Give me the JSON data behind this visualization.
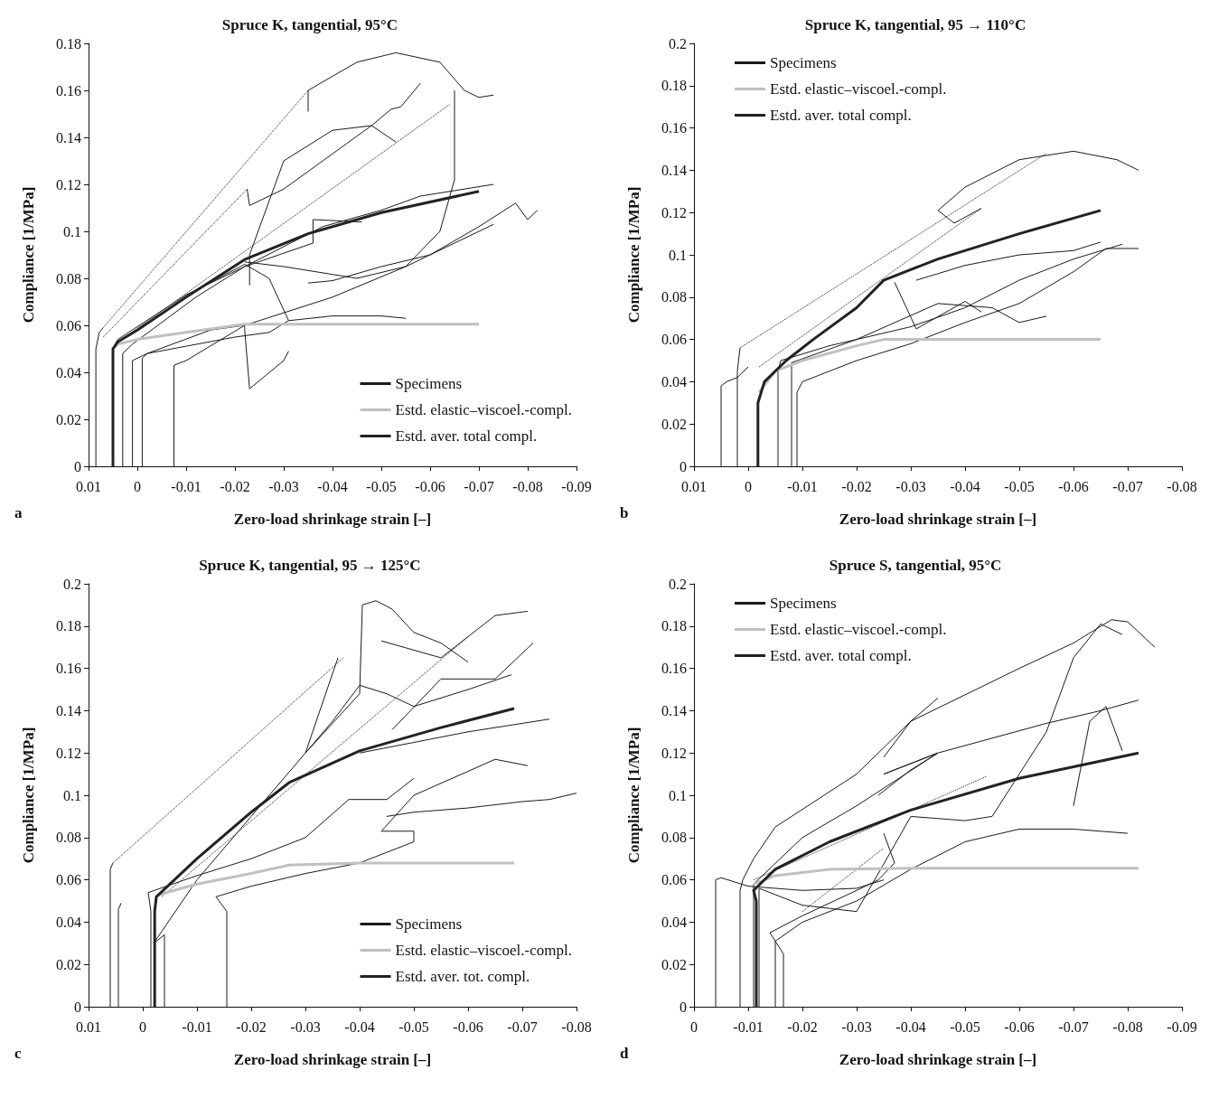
{
  "chart_data": [
    {
      "type": "line",
      "title": "Spruce K, tangential, 95°C",
      "xlabel": "Zero-load shrinkage strain [–]",
      "ylabel": "Compliance [1/MPa]",
      "annotations": [
        "a"
      ],
      "xlim": [
        0.01,
        -0.09
      ],
      "xticks": [
        0.01,
        0,
        -0.01,
        -0.02,
        -0.03,
        -0.04,
        -0.05,
        -0.06,
        -0.07,
        -0.08,
        -0.09
      ],
      "ylim": [
        0,
        0.18
      ],
      "yticks": [
        0,
        0.02,
        0.04,
        0.06,
        0.08,
        0.1,
        0.12,
        0.14,
        0.16,
        0.18
      ],
      "legend": "bottom right",
      "grid": false,
      "line_style": "solid",
      "series": [
        {
          "name": "Specimens",
          "color": "#1a1a1a",
          "x": [
            0.0085,
            0.0085,
            0.0078,
            0.007
          ],
          "values": [
            0,
            0.05,
            0.057,
            0.059
          ]
        },
        {
          "color": "#1a1a1a",
          "x": [
            0.005,
            0.005,
            0.004,
            -0.01,
            -0.022,
            -0.036,
            -0.036,
            -0.046
          ],
          "values": [
            0,
            0.05,
            0.054,
            0.073,
            0.085,
            0.095,
            0.105,
            0.104
          ]
        },
        {
          "color": "#1a1a1a",
          "x": [
            0.003,
            0.003,
            0.001,
            -0.012,
            -0.022,
            -0.038,
            -0.05,
            -0.058,
            -0.073
          ],
          "values": [
            0,
            0.048,
            0.052,
            0.072,
            0.085,
            0.102,
            0.109,
            0.115,
            0.12
          ]
        },
        {
          "color": "#1a1a1a",
          "x": [
            0.001,
            0.001,
            -0.002,
            -0.015,
            -0.022,
            -0.022,
            -0.023,
            -0.03,
            -0.031
          ],
          "values": [
            0,
            0.045,
            0.048,
            0.058,
            0.06,
            0.058,
            0.033,
            0.045,
            0.049
          ]
        },
        {
          "color": "#1a1a1a",
          "x": [
            -0.001,
            -0.001,
            -0.002,
            -0.02,
            -0.027,
            -0.031,
            -0.04,
            -0.05,
            -0.055
          ],
          "values": [
            0,
            0.046,
            0.048,
            0.055,
            0.057,
            0.062,
            0.064,
            0.064,
            0.063
          ]
        },
        {
          "color": "#1a1a1a",
          "x": [
            -0.0075,
            -0.0075,
            -0.01,
            -0.022,
            -0.04,
            -0.055,
            -0.07,
            -0.073
          ],
          "values": [
            0,
            0.043,
            0.045,
            0.06,
            0.072,
            0.085,
            0.1,
            0.103
          ]
        },
        {
          "color": "#1a1a1a",
          "x": [
            -0.035,
            -0.035,
            -0.045,
            -0.053,
            -0.062,
            -0.067,
            -0.07,
            -0.073
          ],
          "values": [
            0.151,
            0.16,
            0.172,
            0.176,
            0.172,
            0.16,
            0.157,
            0.158
          ]
        },
        {
          "color": "#1a1a1a",
          "x": [
            -0.0225,
            -0.023,
            -0.03,
            -0.04,
            -0.048,
            -0.052,
            -0.054,
            -0.058
          ],
          "values": [
            0.118,
            0.111,
            0.118,
            0.133,
            0.145,
            0.152,
            0.153,
            0.163
          ]
        },
        {
          "color": "#1a1a1a",
          "x": [
            -0.023,
            -0.023,
            -0.03,
            -0.04,
            -0.048,
            -0.053
          ],
          "values": [
            0.077,
            0.09,
            0.13,
            0.143,
            0.145,
            0.138
          ]
        },
        {
          "color": "#1a1a1a",
          "x": [
            -0.022,
            -0.03,
            -0.045,
            -0.055,
            -0.062,
            -0.065,
            -0.065
          ],
          "values": [
            0.087,
            0.085,
            0.08,
            0.085,
            0.1,
            0.122,
            0.16
          ]
        },
        {
          "color": "#1a1a1a",
          "x": [
            -0.035,
            -0.04,
            -0.05,
            -0.06,
            -0.07,
            -0.0775,
            -0.08,
            -0.082
          ],
          "values": [
            0.078,
            0.079,
            0.085,
            0.09,
            0.102,
            0.112,
            0.105,
            0.109
          ]
        },
        {
          "color": "#1a1a1a",
          "x": [
            -0.012,
            -0.022,
            -0.027,
            -0.031
          ],
          "values": [
            0.075,
            0.086,
            0.08,
            0.062
          ]
        },
        {
          "color": "#1a1a1a",
          "line_style": "dotted",
          "x": [
            0.007,
            -0.035
          ],
          "values": [
            0.059,
            0.16
          ]
        },
        {
          "color": "#1a1a1a",
          "line_style": "dotted",
          "x": [
            0.007,
            -0.0225
          ],
          "values": [
            0.055,
            0.118
          ]
        },
        {
          "color": "#1a1a1a",
          "line_style": "dotted",
          "x": [
            0.0045,
            -0.064
          ],
          "values": [
            0.052,
            0.154
          ]
        },
        {
          "name": "Estd. elastic–viscoel.-compl.",
          "color": "#c0c0c0",
          "x": [
            0.005,
            0.004,
            0,
            -0.01,
            -0.022,
            -0.07
          ],
          "values": [
            0.05,
            0.052,
            0.054,
            0.057,
            0.0605,
            0.0605
          ]
        },
        {
          "name": "Estd. aver. total compl.",
          "color": "#222222",
          "x": [
            0.005,
            0.005,
            0.004,
            0,
            -0.01,
            -0.022,
            -0.035,
            -0.05,
            -0.07
          ],
          "values": [
            0,
            0.05,
            0.053,
            0.058,
            0.072,
            0.088,
            0.099,
            0.108,
            0.117
          ]
        }
      ]
    },
    {
      "type": "line",
      "title": "Spruce K, tangential, 95 → 110°C",
      "xlabel": "Zero-load shrinkage strain [–]",
      "ylabel": "Compliance [1/MPa]",
      "annotations": [
        "b"
      ],
      "xlim": [
        0.01,
        -0.08
      ],
      "xticks": [
        0.01,
        0,
        -0.01,
        -0.02,
        -0.03,
        -0.04,
        -0.05,
        -0.06,
        -0.07,
        -0.08
      ],
      "ylim": [
        0,
        0.2
      ],
      "yticks": [
        0,
        0.02,
        0.04,
        0.06,
        0.08,
        0.1,
        0.12,
        0.14,
        0.16,
        0.18,
        0.2
      ],
      "legend": "top left",
      "grid": false,
      "line_style": "solid",
      "series": [
        {
          "name": "Specimens",
          "color": "#1a1a1a",
          "x": [
            0.005,
            0.005,
            0.004,
            0.002,
            0
          ],
          "values": [
            0,
            0.038,
            0.04,
            0.042,
            0.047
          ]
        },
        {
          "color": "#1a1a1a",
          "x": [
            0.002,
            0.002,
            0.0015
          ],
          "values": [
            0,
            0.045,
            0.056
          ]
        },
        {
          "color": "#1a1a1a",
          "x": [
            -0.0055,
            -0.0055,
            -0.006,
            -0.015,
            -0.03,
            -0.04,
            -0.05,
            -0.06,
            -0.069
          ],
          "values": [
            0,
            0.045,
            0.05,
            0.057,
            0.066,
            0.075,
            0.088,
            0.098,
            0.105
          ]
        },
        {
          "color": "#1a1a1a",
          "x": [
            -0.009,
            -0.009,
            -0.01,
            -0.02,
            -0.03,
            -0.04,
            -0.05,
            -0.06,
            -0.066,
            -0.072
          ],
          "values": [
            0,
            0.035,
            0.04,
            0.05,
            0.058,
            0.068,
            0.077,
            0.092,
            0.103,
            0.103
          ]
        },
        {
          "color": "#1a1a1a",
          "x": [
            -0.008,
            -0.008,
            -0.008,
            -0.02,
            -0.035,
            -0.045,
            -0.05,
            -0.055
          ],
          "values": [
            0,
            0.045,
            0.049,
            0.06,
            0.077,
            0.075,
            0.068,
            0.071
          ]
        },
        {
          "color": "#1a1a1a",
          "x": [
            -0.043,
            -0.038,
            -0.035,
            -0.04,
            -0.05,
            -0.06,
            -0.068,
            -0.072
          ],
          "values": [
            0.122,
            0.115,
            0.121,
            0.132,
            0.145,
            0.149,
            0.145,
            0.14
          ]
        },
        {
          "color": "#1a1a1a",
          "x": [
            -0.031,
            -0.04,
            -0.05,
            -0.06,
            -0.065
          ],
          "values": [
            0.088,
            0.095,
            0.1,
            0.102,
            0.106
          ]
        },
        {
          "color": "#1a1a1a",
          "x": [
            -0.027,
            -0.031,
            -0.04,
            -0.043
          ],
          "values": [
            0.087,
            0.065,
            0.078,
            0.073
          ]
        },
        {
          "color": "#1a1a1a",
          "line_style": "dotted",
          "x": [
            0.0015,
            -0.055
          ],
          "values": [
            0.056,
            0.148
          ]
        },
        {
          "color": "#1a1a1a",
          "line_style": "dotted",
          "x": [
            -0.002,
            -0.043
          ],
          "values": [
            0.047,
            0.122
          ]
        },
        {
          "name": "Estd. elastic–viscoel.-compl.",
          "color": "#c0c0c0",
          "x": [
            -0.002,
            -0.005,
            -0.01,
            -0.02,
            -0.025,
            -0.065
          ],
          "values": [
            0.035,
            0.045,
            0.05,
            0.057,
            0.06,
            0.06
          ]
        },
        {
          "name": "Estd. aver. total compl.",
          "color": "#222222",
          "x": [
            -0.0018,
            -0.0018,
            -0.003,
            -0.007,
            -0.012,
            -0.02,
            -0.025,
            -0.035,
            -0.05,
            -0.065
          ],
          "values": [
            0,
            0.03,
            0.04,
            0.05,
            0.06,
            0.075,
            0.088,
            0.098,
            0.11,
            0.121
          ]
        }
      ]
    },
    {
      "type": "line",
      "title": "Spruce K, tangential, 95 → 125°C",
      "xlabel": "Zero-load shrinkage strain [–]",
      "ylabel": "Compliance [1/MPa]",
      "annotations": [
        "c"
      ],
      "xlim": [
        0.01,
        -0.08
      ],
      "xticks": [
        0.01,
        0,
        -0.01,
        -0.02,
        -0.03,
        -0.04,
        -0.05,
        -0.06,
        -0.07,
        -0.08
      ],
      "ylim": [
        0,
        0.2
      ],
      "yticks": [
        0,
        0.02,
        0.04,
        0.06,
        0.08,
        0.1,
        0.12,
        0.14,
        0.16,
        0.18,
        0.2
      ],
      "legend": "bottom right",
      "grid": false,
      "line_style": "solid",
      "series": [
        {
          "name": "Specimens",
          "color": "#1a1a1a",
          "x": [
            0.006,
            0.006,
            0.0055
          ],
          "values": [
            0,
            0.065,
            0.068
          ]
        },
        {
          "color": "#1a1a1a",
          "x": [
            0.0045,
            0.0045,
            0.004
          ],
          "values": [
            0,
            0.046,
            0.049
          ]
        },
        {
          "color": "#1a1a1a",
          "x": [
            -0.0015,
            -0.0015,
            -0.001,
            -0.01,
            -0.02,
            -0.03,
            -0.038,
            -0.045,
            -0.05
          ],
          "values": [
            0,
            0.045,
            0.054,
            0.062,
            0.07,
            0.08,
            0.098,
            0.098,
            0.108
          ]
        },
        {
          "color": "#1a1a1a",
          "x": [
            -0.004,
            -0.004,
            -0.002,
            -0.01,
            -0.02,
            -0.03,
            -0.04,
            -0.0405,
            -0.043,
            -0.046,
            -0.05,
            -0.055,
            -0.06
          ],
          "values": [
            0,
            0.034,
            0.03,
            0.06,
            0.09,
            0.12,
            0.148,
            0.19,
            0.192,
            0.188,
            0.177,
            0.172,
            0.163
          ]
        },
        {
          "color": "#1a1a1a",
          "x": [
            -0.0155,
            -0.0155,
            -0.0135,
            -0.02,
            -0.03,
            -0.04,
            -0.05,
            -0.05,
            -0.044,
            -0.05,
            -0.065,
            -0.071
          ],
          "values": [
            0,
            0.045,
            0.052,
            0.057,
            0.063,
            0.068,
            0.078,
            0.083,
            0.083,
            0.1,
            0.117,
            0.114
          ]
        },
        {
          "color": "#1a1a1a",
          "x": [
            -0.045,
            -0.05,
            -0.06,
            -0.07,
            -0.075,
            -0.08
          ],
          "values": [
            0.09,
            0.092,
            0.094,
            0.097,
            0.098,
            0.101
          ]
        },
        {
          "color": "#1a1a1a",
          "x": [
            -0.036,
            -0.03,
            -0.035,
            -0.04,
            -0.045,
            -0.05,
            -0.06,
            -0.068
          ],
          "values": [
            0.165,
            0.12,
            0.135,
            0.152,
            0.148,
            0.142,
            0.15,
            0.157
          ]
        },
        {
          "color": "#1a1a1a",
          "x": [
            -0.044,
            -0.055,
            -0.065,
            -0.071
          ],
          "values": [
            0.173,
            0.165,
            0.185,
            0.187
          ]
        },
        {
          "color": "#1a1a1a",
          "x": [
            -0.046,
            -0.055,
            -0.065,
            -0.072
          ],
          "values": [
            0.131,
            0.155,
            0.155,
            0.172
          ]
        },
        {
          "color": "#1a1a1a",
          "x": [
            -0.04,
            -0.05,
            -0.06,
            -0.075
          ],
          "values": [
            0.12,
            0.125,
            0.13,
            0.136
          ]
        },
        {
          "color": "#1a1a1a",
          "line_style": "dotted",
          "x": [
            0.0055,
            -0.037
          ],
          "values": [
            0.068,
            0.165
          ]
        },
        {
          "color": "#1a1a1a",
          "line_style": "dotted",
          "x": [
            -0.0035,
            -0.06
          ],
          "values": [
            0.052,
            0.175
          ]
        },
        {
          "name": "Estd. elastic–viscoel.-compl.",
          "color": "#c0c0c0",
          "x": [
            -0.003,
            -0.01,
            -0.02,
            -0.027,
            -0.04,
            -0.0685
          ],
          "values": [
            0.053,
            0.058,
            0.063,
            0.067,
            0.068,
            0.068
          ]
        },
        {
          "name": "Estd. aver. tot. compl.",
          "color": "#222222",
          "x": [
            -0.0022,
            -0.0022,
            -0.0025,
            -0.01,
            -0.02,
            -0.027,
            -0.04,
            -0.055,
            -0.0685
          ],
          "values": [
            0,
            0.045,
            0.052,
            0.07,
            0.092,
            0.106,
            0.121,
            0.132,
            0.141
          ]
        }
      ]
    },
    {
      "type": "line",
      "title": "Spruce S, tangential, 95°C",
      "xlabel": "Zero-load shrinkage strain [–]",
      "ylabel": "Compliance [1/MPa]",
      "annotations": [
        "d"
      ],
      "xlim": [
        0,
        -0.09
      ],
      "xticks": [
        0,
        -0.01,
        -0.02,
        -0.03,
        -0.04,
        -0.05,
        -0.06,
        -0.07,
        -0.08,
        -0.09
      ],
      "ylim": [
        0,
        0.2
      ],
      "yticks": [
        0,
        0.02,
        0.04,
        0.06,
        0.08,
        0.1,
        0.12,
        0.14,
        0.16,
        0.18,
        0.2
      ],
      "legend": "top left",
      "grid": false,
      "line_style": "solid",
      "series": [
        {
          "name": "Specimens",
          "color": "#1a1a1a",
          "x": [
            -0.004,
            -0.004,
            -0.005,
            -0.01,
            -0.02,
            -0.03,
            -0.035
          ],
          "values": [
            0,
            0.06,
            0.061,
            0.057,
            0.055,
            0.056,
            0.06
          ]
        },
        {
          "color": "#1a1a1a",
          "x": [
            -0.0085,
            -0.0085,
            -0.009,
            -0.011,
            -0.015,
            -0.03,
            -0.04,
            -0.052,
            -0.06,
            -0.07,
            -0.077,
            -0.08,
            -0.085
          ],
          "values": [
            0,
            0.055,
            0.06,
            0.07,
            0.085,
            0.11,
            0.135,
            0.15,
            0.16,
            0.172,
            0.183,
            0.182,
            0.17
          ]
        },
        {
          "color": "#1a1a1a",
          "x": [
            -0.011,
            -0.011,
            -0.02,
            -0.03,
            -0.045,
            -0.055,
            -0.065,
            -0.075,
            -0.082
          ],
          "values": [
            0,
            0.058,
            0.08,
            0.095,
            0.12,
            0.127,
            0.134,
            0.14,
            0.145
          ]
        },
        {
          "color": "#1a1a1a",
          "x": [
            -0.012,
            -0.012,
            -0.02,
            -0.03,
            -0.04,
            -0.05,
            -0.055,
            -0.06,
            -0.065,
            -0.07,
            -0.075,
            -0.079
          ],
          "values": [
            0,
            0.056,
            0.048,
            0.045,
            0.09,
            0.088,
            0.09,
            0.11,
            0.13,
            0.165,
            0.181,
            0.176
          ]
        },
        {
          "color": "#1a1a1a",
          "x": [
            -0.015,
            -0.015,
            -0.02,
            -0.03,
            -0.04,
            -0.05,
            -0.06,
            -0.07,
            -0.08
          ],
          "values": [
            0,
            0.031,
            0.04,
            0.05,
            0.065,
            0.078,
            0.084,
            0.084,
            0.082
          ]
        },
        {
          "color": "#1a1a1a",
          "x": [
            -0.0165,
            -0.0165,
            -0.014,
            -0.02,
            -0.03,
            -0.034,
            -0.037,
            -0.035
          ],
          "values": [
            0,
            0.025,
            0.035,
            0.043,
            0.055,
            0.06,
            0.068,
            0.082
          ]
        },
        {
          "color": "#1a1a1a",
          "x": [
            -0.035,
            -0.04,
            -0.045
          ],
          "values": [
            0.118,
            0.135,
            0.146
          ]
        },
        {
          "color": "#1a1a1a",
          "x": [
            -0.034,
            -0.04,
            -0.045,
            -0.035,
            -0.045
          ],
          "values": [
            0.1,
            0.112,
            0.12,
            0.11,
            0.12
          ]
        },
        {
          "color": "#1a1a1a",
          "x": [
            -0.07,
            -0.073,
            -0.076,
            -0.079
          ],
          "values": [
            0.095,
            0.135,
            0.142,
            0.121
          ]
        },
        {
          "color": "#1a1a1a",
          "line_style": "dotted",
          "x": [
            -0.011,
            -0.054
          ],
          "values": [
            0.06,
            0.109
          ]
        },
        {
          "color": "#1a1a1a",
          "line_style": "dotted",
          "x": [
            -0.02,
            -0.035
          ],
          "values": [
            0.045,
            0.075
          ]
        },
        {
          "name": "Estd. elastic–viscoel.-compl.",
          "color": "#c0c0c0",
          "x": [
            -0.011,
            -0.015,
            -0.025,
            -0.04,
            -0.082
          ],
          "values": [
            0.058,
            0.062,
            0.065,
            0.0655,
            0.0655
          ]
        },
        {
          "name": "Estd. aver. total compl.",
          "color": "#222222",
          "x": [
            -0.0115,
            -0.0115,
            -0.011,
            -0.015,
            -0.025,
            -0.04,
            -0.06,
            -0.082
          ],
          "values": [
            0,
            0.05,
            0.055,
            0.065,
            0.078,
            0.093,
            0.108,
            0.12
          ]
        }
      ]
    }
  ]
}
